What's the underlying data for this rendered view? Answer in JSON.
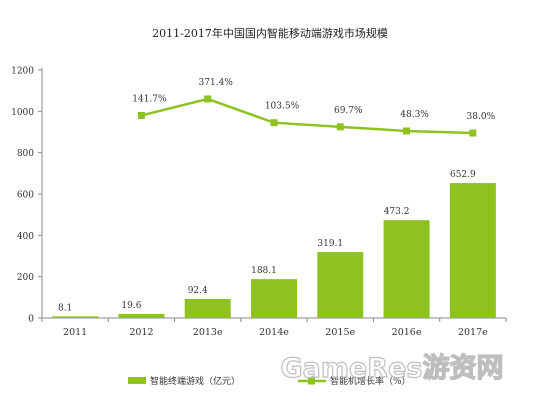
{
  "chart_data": {
    "type": "bar",
    "title": "2011-2017年中国国内智能移动端游戏市场规模",
    "categories": [
      "2011",
      "2012",
      "2013e",
      "2014e",
      "2015e",
      "2016e",
      "2017e"
    ],
    "ylim": [
      0,
      1200
    ],
    "yticks": [
      0,
      200,
      400,
      600,
      800,
      1000,
      1200
    ],
    "grid": false,
    "legend_position": "bottom",
    "series": [
      {
        "name": "智能终端游戏（亿元）",
        "type": "bar",
        "color": "#8dc21f",
        "values": [
          8.1,
          19.6,
          92.4,
          188.1,
          319.1,
          473.2,
          652.9
        ],
        "labels": [
          "8.1",
          "19.6",
          "92.4",
          "188.1",
          "319.1",
          "473.2",
          "652.9"
        ]
      },
      {
        "name": "智能机增长率（%）",
        "type": "line",
        "color": "#8dc21f",
        "values": [
          null,
          141.7,
          371.4,
          103.5,
          69.7,
          48.3,
          38.0
        ],
        "plot_y": [
          null,
          980,
          1060,
          945,
          925,
          905,
          895
        ],
        "labels": [
          null,
          "141.7%",
          "371.4%",
          "103.5%",
          "69.7%",
          "48.3%",
          "38.0%"
        ]
      }
    ],
    "watermark": "GameRes游资网"
  }
}
